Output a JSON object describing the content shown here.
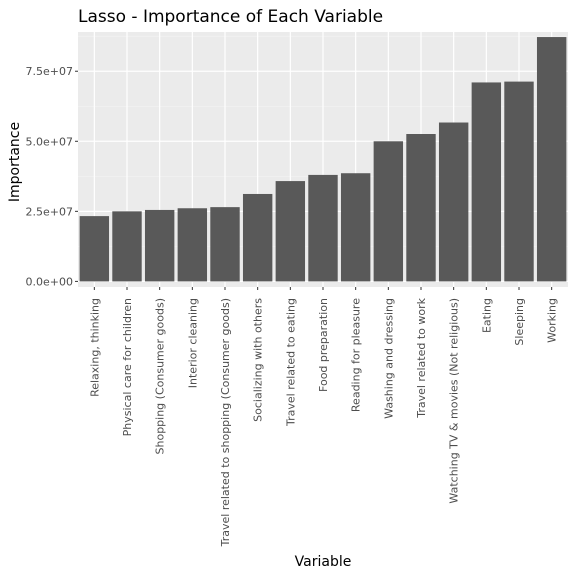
{
  "chart_data": {
    "type": "bar",
    "title": "Lasso - Importance of Each Variable",
    "xlabel": "Variable",
    "ylabel": "Importance",
    "categories": [
      "Relaxing, thinking",
      "Physical care for children",
      "Shopping (Consumer goods)",
      "Interior cleaning",
      "Travel related to shopping (Consumer goods)",
      "Socializing with others",
      "Travel related to eating",
      "Food preparation",
      "Reading for pleasure",
      "Washing and dressing",
      "Travel related to work",
      "Watching TV & movies (Not religious)",
      "Eating",
      "Sleeping",
      "Working"
    ],
    "values": [
      23300000,
      25000000,
      25500000,
      26100000,
      26500000,
      31200000,
      35800000,
      38000000,
      38600000,
      50000000,
      52600000,
      56700000,
      71000000,
      71300000,
      87200000
    ],
    "ylim": [
      -2000000,
      89000000
    ],
    "yticks": [
      0,
      25000000,
      50000000,
      75000000
    ],
    "ytick_labels": [
      "0.0e+00",
      "2.5e+07",
      "5.0e+07",
      "7.5e+07"
    ],
    "grid": true,
    "legend": "none",
    "colors": {
      "bar": "#595959",
      "panel": "#ebebeb",
      "grid_major": "#ffffff",
      "grid_minor": "#f4f4f4",
      "tick_text": "#4d4d4d",
      "tick_mark": "#333333"
    }
  }
}
